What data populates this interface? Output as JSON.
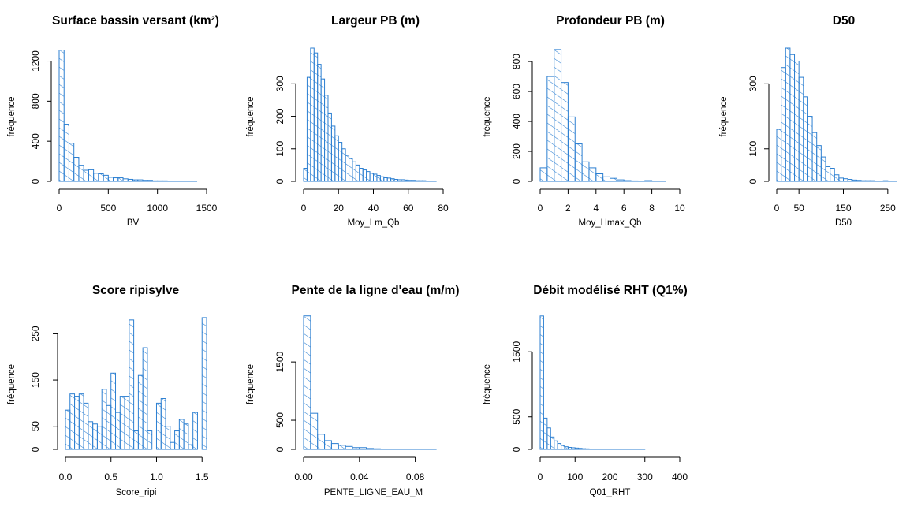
{
  "style": {
    "bar_color": "#2c7fd1",
    "axis_color": "#000000",
    "background": "#ffffff"
  },
  "chart_data": [
    {
      "type": "bar",
      "title": "Surface bassin versant (km²)",
      "xlabel": "BV",
      "ylabel": "fréquence",
      "bin_edges": [
        0,
        50,
        100,
        150,
        200,
        250,
        300,
        350,
        400,
        450,
        500,
        550,
        600,
        650,
        700,
        750,
        800,
        850,
        900,
        950,
        1000,
        1050,
        1100,
        1150,
        1200,
        1250,
        1300,
        1350,
        1400,
        1450,
        1500
      ],
      "values": [
        1310,
        570,
        380,
        240,
        160,
        110,
        115,
        80,
        75,
        60,
        40,
        35,
        35,
        25,
        20,
        15,
        15,
        10,
        10,
        5,
        5,
        5,
        3,
        3,
        2,
        1,
        1,
        1,
        0,
        0
      ],
      "xlim": [
        0,
        1500
      ],
      "ylim": [
        0,
        1330
      ],
      "x_ticks": [
        "0",
        "500",
        "1000",
        "1500"
      ],
      "y_ticks": [
        "0",
        "400",
        "800",
        "1200"
      ],
      "grid": false
    },
    {
      "type": "bar",
      "title": "Largeur PB (m)",
      "xlabel": "Moy_Lm_Qb",
      "ylabel": "fréquence",
      "bin_edges": [
        0,
        2,
        4,
        6,
        8,
        10,
        12,
        14,
        16,
        18,
        20,
        22,
        24,
        26,
        28,
        30,
        32,
        34,
        36,
        38,
        40,
        42,
        44,
        46,
        48,
        50,
        52,
        54,
        56,
        58,
        60,
        62,
        64,
        66,
        68,
        70,
        72,
        74,
        76,
        78,
        80
      ],
      "values": [
        40,
        320,
        410,
        395,
        360,
        315,
        265,
        210,
        170,
        140,
        120,
        100,
        80,
        70,
        60,
        50,
        40,
        35,
        30,
        25,
        22,
        18,
        14,
        11,
        10,
        8,
        6,
        5,
        5,
        4,
        3,
        3,
        2,
        2,
        2,
        1,
        1,
        1,
        0,
        0
      ],
      "xlim": [
        0,
        80
      ],
      "ylim": [
        0,
        410
      ],
      "x_ticks": [
        "0",
        "20",
        "40",
        "60",
        "80"
      ],
      "y_ticks": [
        "0",
        "100",
        "200",
        "300"
      ],
      "grid": false
    },
    {
      "type": "bar",
      "title": "Profondeur PB (m)",
      "xlabel": "Moy_Hmax_Qb",
      "ylabel": "fréquence",
      "bin_edges": [
        0,
        0.5,
        1,
        1.5,
        2,
        2.5,
        3,
        3.5,
        4,
        4.5,
        5,
        5.5,
        6,
        6.5,
        7,
        7.5,
        8,
        8.5,
        9,
        9.5,
        10
      ],
      "values": [
        90,
        700,
        880,
        660,
        430,
        250,
        130,
        90,
        50,
        30,
        20,
        10,
        5,
        3,
        2,
        5,
        2,
        1,
        0,
        0
      ],
      "xlim": [
        0,
        10
      ],
      "ylim": [
        0,
        890
      ],
      "x_ticks": [
        "0",
        "2",
        "4",
        "6",
        "8",
        "10"
      ],
      "y_ticks": [
        "0",
        "200",
        "400",
        "600",
        "800"
      ],
      "grid": false
    },
    {
      "type": "bar",
      "title": "D50",
      "xlabel": "D50",
      "ylabel": "fréquence",
      "bin_edges": [
        0,
        10,
        20,
        30,
        40,
        50,
        60,
        70,
        80,
        90,
        100,
        110,
        120,
        130,
        140,
        150,
        160,
        170,
        180,
        190,
        200,
        210,
        220,
        230,
        240,
        250,
        260,
        270,
        280,
        290,
        300
      ],
      "values": [
        160,
        350,
        410,
        390,
        370,
        320,
        260,
        200,
        150,
        110,
        75,
        45,
        40,
        20,
        10,
        8,
        6,
        4,
        3,
        2,
        2,
        2,
        1,
        1,
        2,
        1,
        1,
        0,
        0,
        0
      ],
      "xlim": [
        0,
        300
      ],
      "ylim": [
        0,
        410
      ],
      "x_ticks": [
        "0",
        "50",
        "150",
        "250"
      ],
      "y_ticks": [
        "0",
        "100",
        "300"
      ],
      "grid": false
    },
    {
      "type": "bar",
      "title": "Score ripisylve",
      "xlabel": "Score_ripi",
      "ylabel": "fréquence",
      "bin_edges": [
        0,
        0.05,
        0.1,
        0.15,
        0.2,
        0.25,
        0.3,
        0.35,
        0.4,
        0.45,
        0.5,
        0.55,
        0.6,
        0.65,
        0.7,
        0.75,
        0.8,
        0.85,
        0.9,
        0.95,
        1,
        1.05,
        1.1,
        1.15,
        1.2,
        1.25,
        1.3,
        1.35,
        1.4,
        1.45,
        1.5,
        1.55
      ],
      "values": [
        85,
        120,
        115,
        120,
        100,
        60,
        55,
        50,
        130,
        95,
        165,
        80,
        115,
        115,
        280,
        40,
        160,
        220,
        40,
        0,
        100,
        110,
        50,
        15,
        40,
        65,
        55,
        10,
        80,
        0,
        285
      ],
      "xlim": [
        0,
        1.55
      ],
      "ylim": [
        0,
        290
      ],
      "x_ticks": [
        "0.0",
        "0.5",
        "1.0",
        "1.5"
      ],
      "y_ticks": [
        "0",
        "50",
        "150",
        "250"
      ],
      "grid": false
    },
    {
      "type": "bar",
      "title": "Pente de la ligne d'eau (m/m)",
      "xlabel": "PENTE_LIGNE_EAU_M",
      "ylabel": "fréquence",
      "bin_edges": [
        0,
        0.005,
        0.01,
        0.015,
        0.02,
        0.025,
        0.03,
        0.035,
        0.04,
        0.045,
        0.05,
        0.055,
        0.06,
        0.065,
        0.07,
        0.075,
        0.08,
        0.085,
        0.09,
        0.095,
        0.1
      ],
      "values": [
        2290,
        620,
        260,
        150,
        100,
        70,
        50,
        30,
        30,
        15,
        10,
        5,
        5,
        3,
        2,
        2,
        1,
        1,
        1,
        0
      ],
      "xlim": [
        0,
        0.1
      ],
      "ylim": [
        0,
        2300
      ],
      "x_ticks": [
        "0.00",
        "0.04",
        "0.08"
      ],
      "y_ticks": [
        "0",
        "500",
        "1500"
      ],
      "grid": false
    },
    {
      "type": "bar",
      "title": "Débit modélisé RHT (Q1%)",
      "xlabel": "Q01_RHT",
      "ylabel": "fréquence",
      "bin_edges": [
        0,
        10,
        20,
        30,
        40,
        50,
        60,
        70,
        80,
        90,
        100,
        110,
        120,
        130,
        140,
        150,
        160,
        170,
        180,
        190,
        200,
        210,
        220,
        230,
        240,
        250,
        260,
        270,
        280,
        290,
        300,
        310,
        320,
        330,
        340,
        350,
        360,
        370,
        380,
        390,
        400
      ],
      "values": [
        2050,
        480,
        330,
        190,
        130,
        90,
        60,
        40,
        30,
        25,
        20,
        15,
        10,
        8,
        5,
        5,
        3,
        3,
        2,
        2,
        2,
        1,
        1,
        1,
        1,
        1,
        1,
        1,
        1,
        1,
        0,
        0,
        0,
        0,
        0,
        0,
        0,
        0,
        0,
        0
      ],
      "xlim": [
        0,
        400
      ],
      "ylim": [
        0,
        2060
      ],
      "x_ticks": [
        "0",
        "100",
        "200",
        "300",
        "400"
      ],
      "y_ticks": [
        "0",
        "500",
        "1500"
      ],
      "grid": false
    }
  ]
}
